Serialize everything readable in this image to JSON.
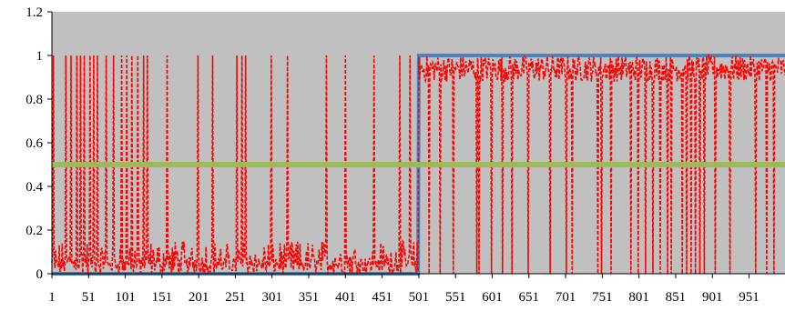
{
  "chart_data": {
    "type": "line",
    "title": "",
    "xlabel": "",
    "ylabel": "",
    "xlim": [
      1,
      1000
    ],
    "ylim": [
      0,
      1.2
    ],
    "y_ticks": [
      "0",
      "0.2",
      "0.4",
      "0.6",
      "0.8",
      "1",
      "1.2"
    ],
    "x_ticks": [
      "1",
      "51",
      "101",
      "151",
      "201",
      "251",
      "301",
      "351",
      "401",
      "451",
      "501",
      "551",
      "601",
      "651",
      "701",
      "751",
      "801",
      "851",
      "901",
      "951"
    ],
    "grid": false,
    "legend": "none",
    "plot_background": "#c0c0c0",
    "series": [
      {
        "color": "#4f81bd",
        "style": "solid",
        "x": [
          1,
          500,
          501,
          1000
        ],
        "values": [
          0,
          0,
          1,
          1
        ]
      },
      {
        "color": "#9bbb59",
        "style": "solid",
        "x": [
          1,
          1000
        ],
        "values": [
          0.5,
          0.5
        ]
      },
      {
        "color": "#ff0000",
        "style": "dashed",
        "description_levels": {
          "x_1_500_baseline_range": [
            0.0,
            0.15
          ],
          "x_501_1000_baseline_range": [
            0.88,
            1.0
          ]
        },
        "spikes_to_1_x": [
          3,
          20,
          27,
          35,
          40,
          45,
          53,
          58,
          63,
          75,
          85,
          96,
          103,
          110,
          118,
          126,
          131,
          158,
          200,
          220,
          253,
          260,
          265,
          300,
          322,
          375,
          401,
          440,
          475,
          489
        ],
        "spikes_to_0_x": [
          515,
          530,
          548,
          580,
          583,
          600,
          615,
          628,
          650,
          680,
          702,
          710,
          745,
          750,
          763,
          790,
          800,
          810,
          820,
          830,
          840,
          845,
          860,
          866,
          872,
          878,
          884,
          890,
          905,
          925,
          960,
          975,
          985
        ]
      }
    ]
  }
}
